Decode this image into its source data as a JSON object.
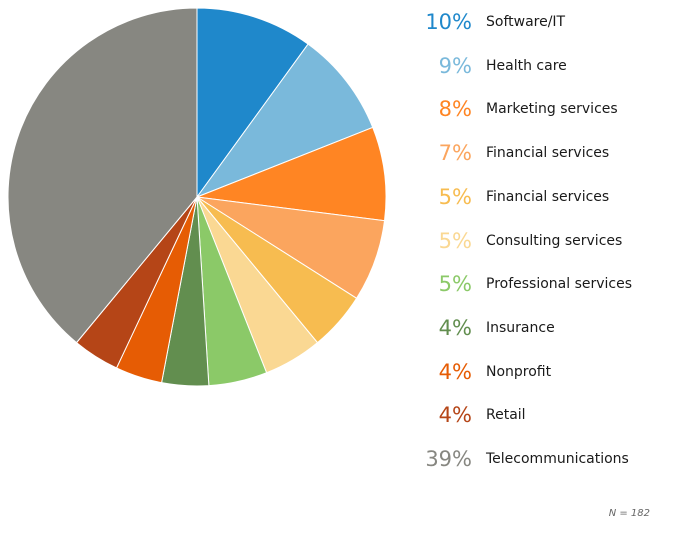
{
  "chart_data": {
    "type": "pie",
    "title": "",
    "categories": [
      "Software/IT",
      "Health care",
      "Marketing services",
      "Financial services",
      "Financial services",
      "Consulting services",
      "Professional services",
      "Insurance",
      "Nonprofit",
      "Retail",
      "Telecommunications"
    ],
    "values": [
      10,
      9,
      8,
      7,
      5,
      5,
      5,
      4,
      4,
      4,
      39
    ],
    "value_labels": [
      "10%",
      "9%",
      "8%",
      "7%",
      "5%",
      "5%",
      "5%",
      "4%",
      "4%",
      "4%",
      "39%"
    ],
    "colors": [
      "#1f88cb",
      "#7ab9db",
      "#ff8523",
      "#fba55e",
      "#f7bc50",
      "#fad893",
      "#8bc968",
      "#628e4f",
      "#e65c04",
      "#b54517",
      "#878781"
    ],
    "legend_position": "right",
    "footnote": "N = 182"
  }
}
